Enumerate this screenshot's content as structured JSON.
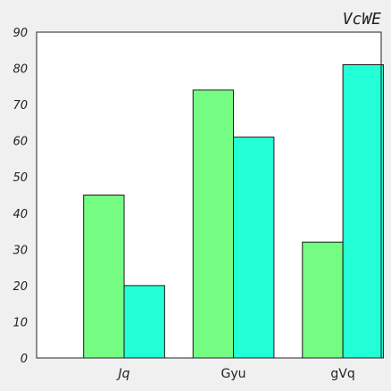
{
  "chart_data": {
    "type": "bar",
    "title": "VcWE",
    "xlabel": "",
    "ylabel": "",
    "categories": [
      "Jq",
      "Gyu",
      "gVq"
    ],
    "category_italic": [
      true,
      false,
      false
    ],
    "series": [
      {
        "values": [
          45,
          74,
          32
        ],
        "color": "#75fc83"
      },
      {
        "values": [
          20,
          61,
          81
        ],
        "color": "#23ffd6"
      }
    ],
    "ylim": [
      0,
      90
    ],
    "yticks": [
      0,
      10,
      20,
      30,
      40,
      50,
      60,
      70,
      80,
      90
    ],
    "grid": false,
    "legend": false
  },
  "colors": {
    "background": "#f0f0f0",
    "plot_background": "#ffffff",
    "axis": "#222222",
    "bar_edge": "#1a1a1a"
  }
}
